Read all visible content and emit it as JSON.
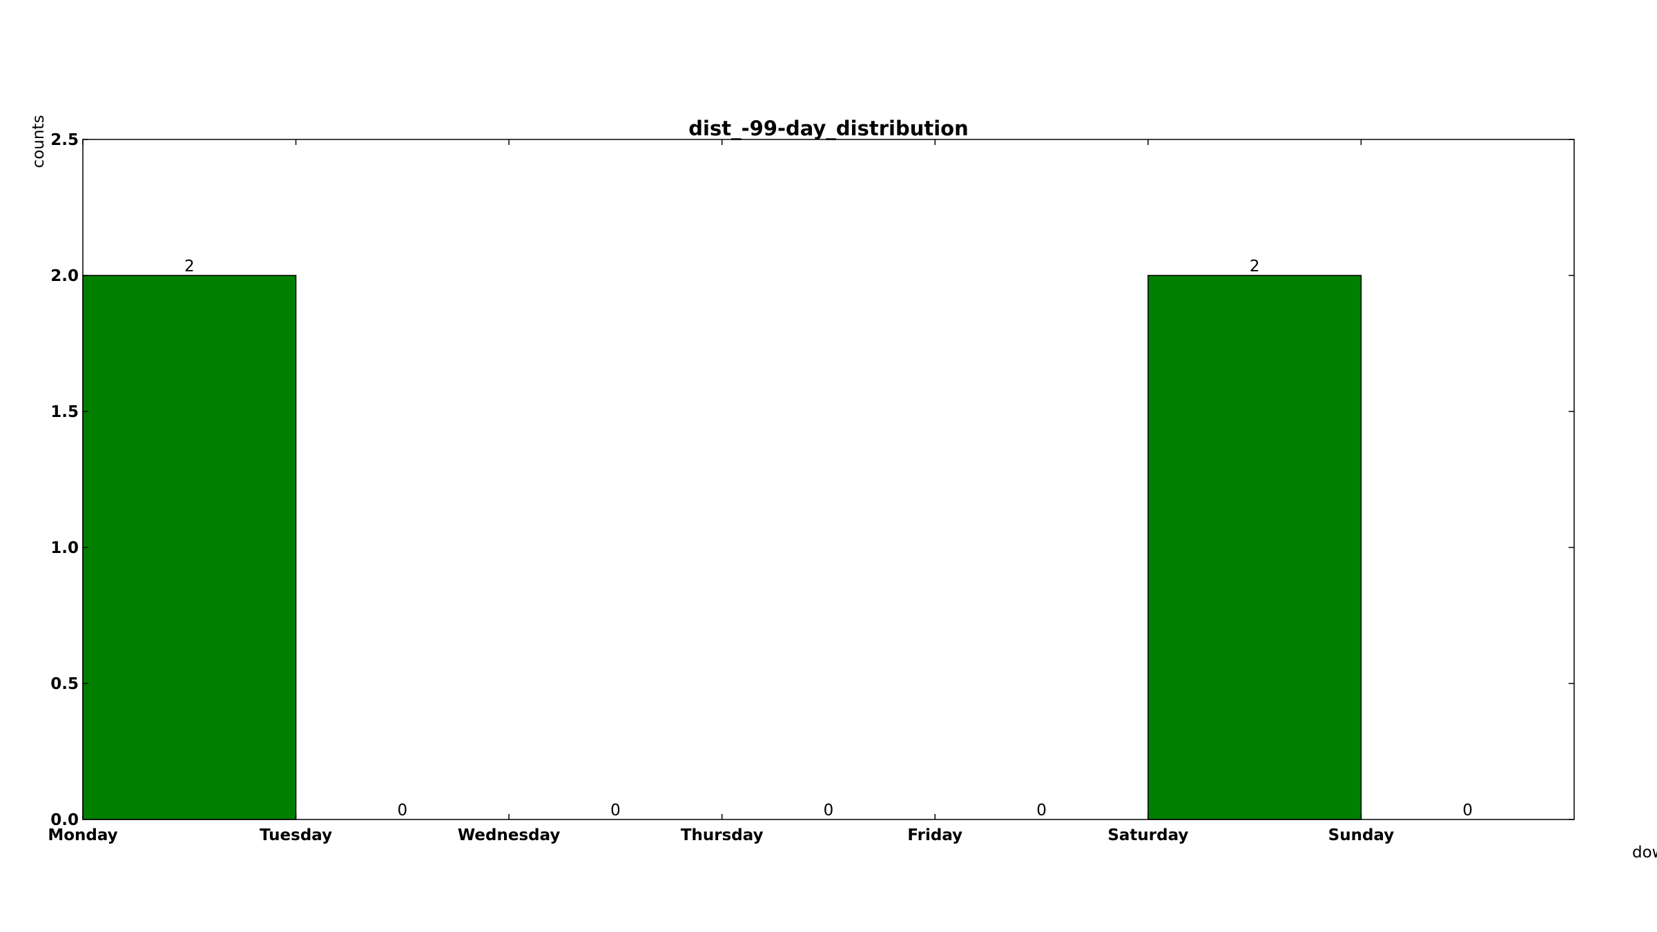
{
  "chart_data": {
    "type": "bar",
    "title": "dist_-99-day_distribution",
    "ylabel": "counts",
    "xlabel": "dow",
    "categories": [
      "Monday",
      "Tuesday",
      "Wednesday",
      "Thursday",
      "Friday",
      "Saturday",
      "Sunday"
    ],
    "values": [
      2,
      0,
      0,
      0,
      0,
      2,
      0
    ],
    "data_labels": [
      "2",
      "0",
      "0",
      "0",
      "0",
      "2",
      "0"
    ],
    "ylim": [
      0,
      2.5
    ],
    "yticks": [
      "0.0",
      "0.5",
      "1.0",
      "1.5",
      "2.0",
      "2.5"
    ],
    "bar_color": "#008000",
    "grid": false
  }
}
